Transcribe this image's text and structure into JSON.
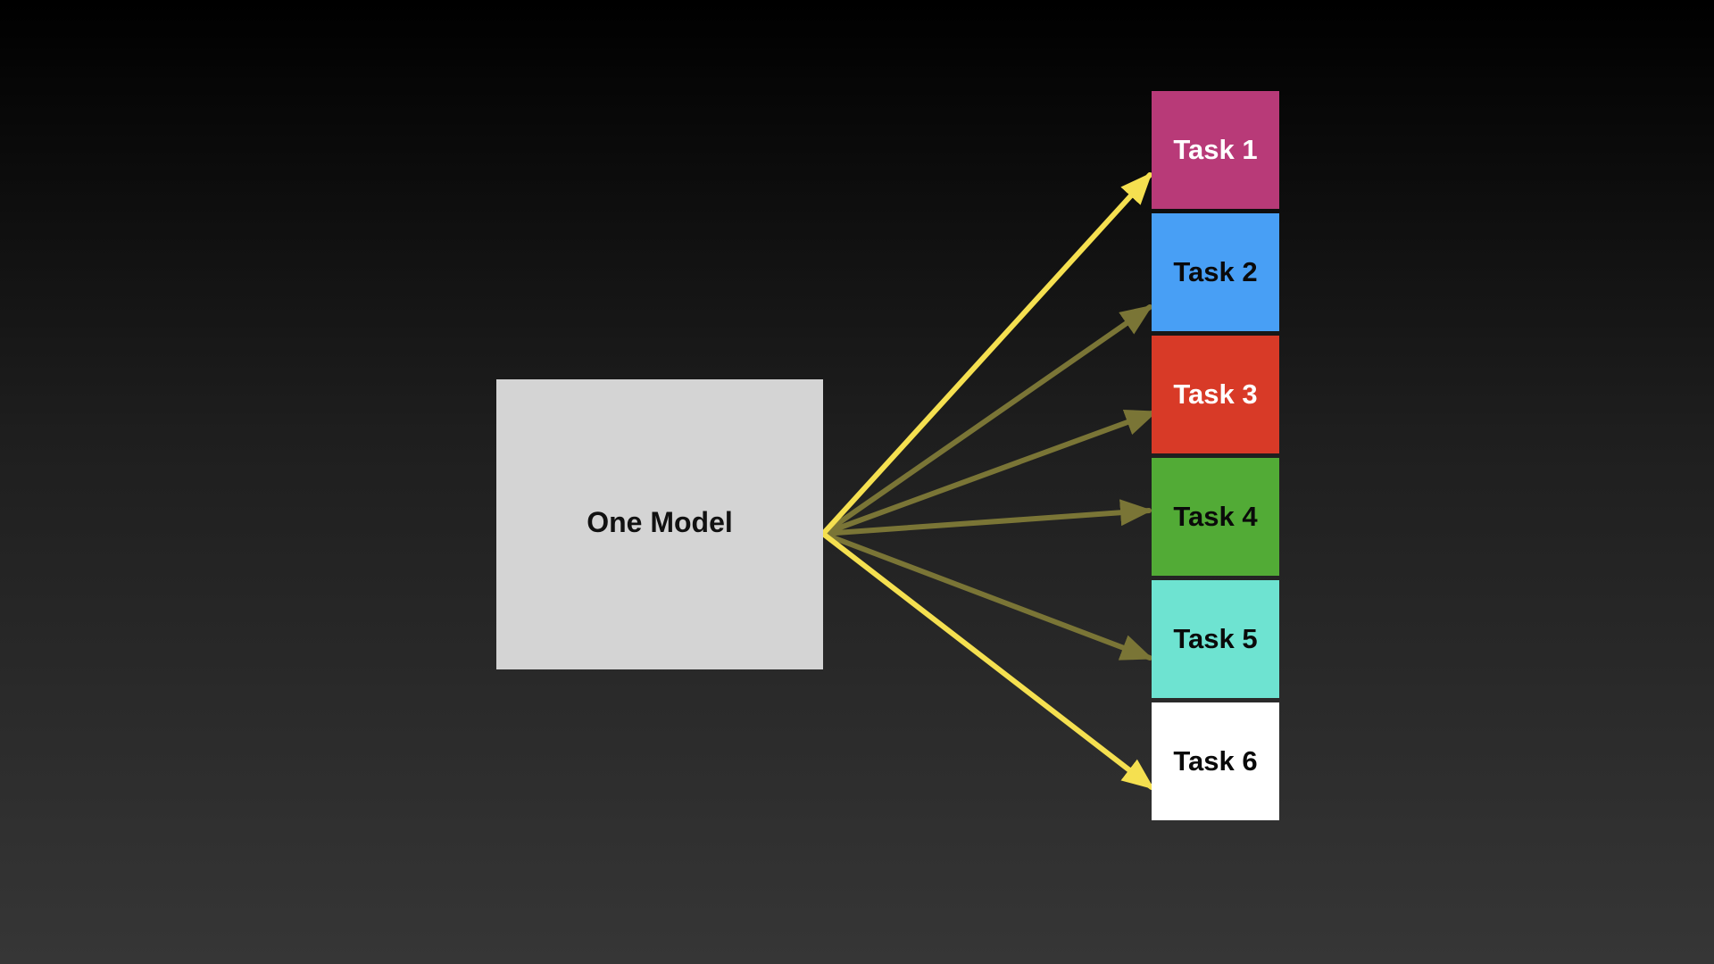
{
  "model": {
    "label": "One Model",
    "color": "#d4d4d4"
  },
  "tasks": [
    {
      "label": "Task 1",
      "color": "#b83a78",
      "text_color": "#ffffff",
      "emphasized": true
    },
    {
      "label": "Task 2",
      "color": "#489ff5",
      "text_color": "#0a0a0a",
      "emphasized": false
    },
    {
      "label": "Task 3",
      "color": "#d83a27",
      "text_color": "#ffffff",
      "emphasized": false
    },
    {
      "label": "Task 4",
      "color": "#52ab36",
      "text_color": "#0a0a0a",
      "emphasized": false
    },
    {
      "label": "Task 5",
      "color": "#6ee3d1",
      "text_color": "#0a0a0a",
      "emphasized": false
    },
    {
      "label": "Task 6",
      "color": "#ffffff",
      "text_color": "#0a0a0a",
      "emphasized": true
    }
  ],
  "arrow_colors": {
    "emphasized": "#f5e050",
    "muted": "#7a7536"
  }
}
